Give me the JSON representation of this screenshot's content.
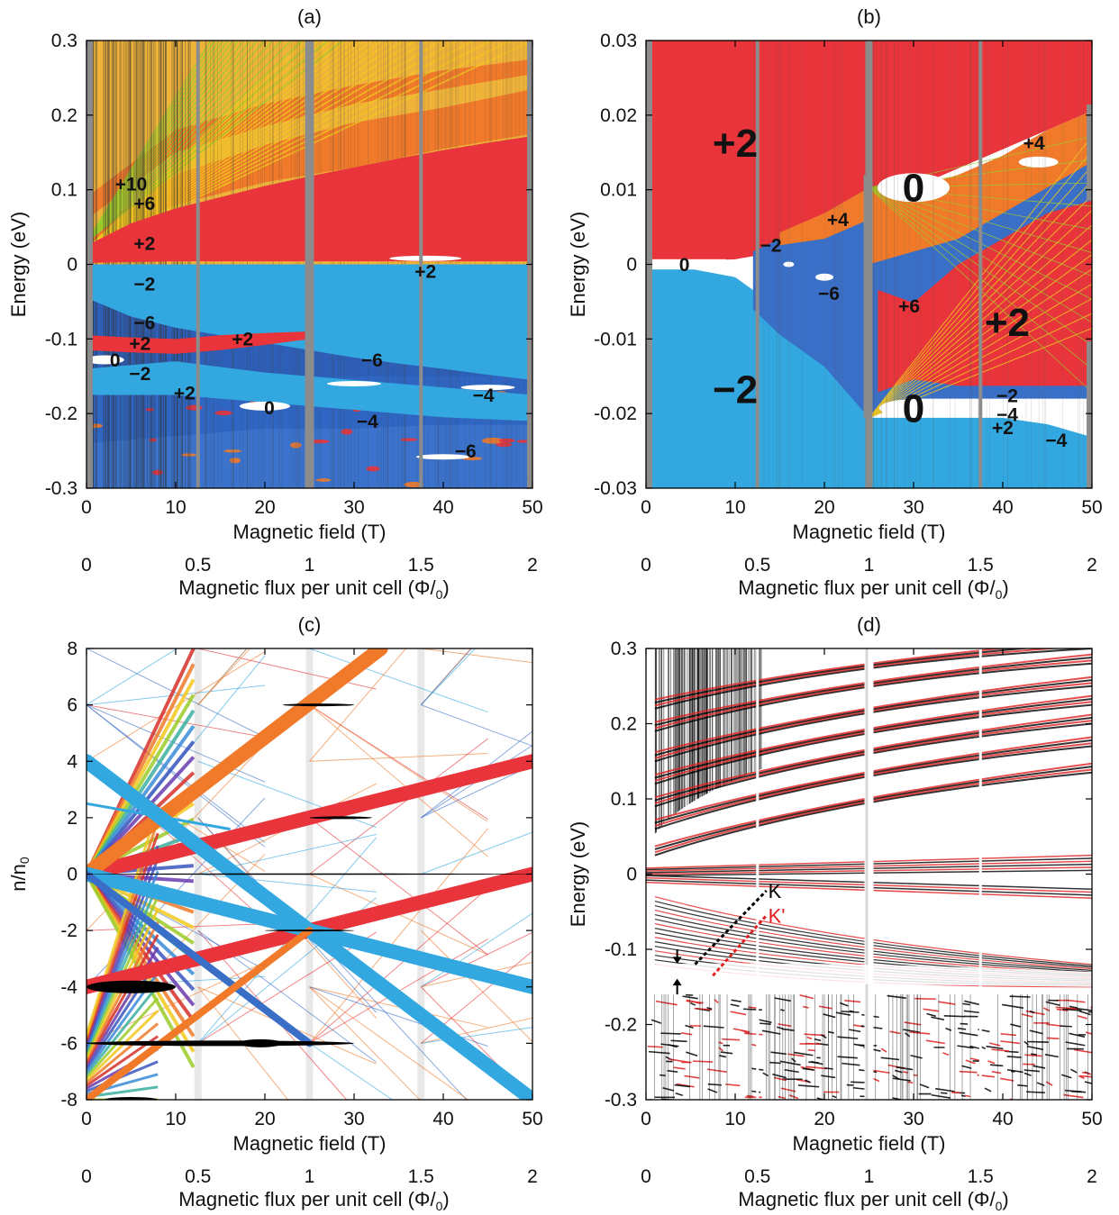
{
  "figure": {
    "colors": {
      "plus2": "#e8343a",
      "minus2": "#33a8e0",
      "orange": "#f07a2a",
      "yellow": "#f2c81f",
      "green": "#9ccc2a",
      "blue_dark": "#3a6fc8",
      "gap_gray": "#8c8c8c",
      "K": "#000000",
      "Kprime": "#e02020"
    }
  },
  "chart_data": [
    {
      "panel": "(a)",
      "type": "area",
      "title": "(a)",
      "xlabel": "Magnetic field (T)",
      "ylabel": "Energy (eV)",
      "xlim": [
        0,
        50
      ],
      "ylim": [
        -0.3,
        0.3
      ],
      "xticks": [
        "0",
        "10",
        "20",
        "30",
        "40",
        "50"
      ],
      "yticks": [
        "-0.3",
        "-0.2",
        "-0.1",
        "0",
        "0.1",
        "0.2",
        "0.3"
      ],
      "x2label": "Magnetic flux per unit cell (Φ/Φ0)",
      "x2ticks": [
        "0",
        "0.5",
        "1",
        "1.5",
        "2"
      ],
      "bands": [
        {
          "name": "+2",
          "color": "plus2",
          "x": [
            0,
            5,
            10,
            15,
            20,
            25,
            30,
            35,
            40,
            45,
            50
          ],
          "lower": [
            0.002,
            0.003,
            0.004,
            0.004,
            0.004,
            0.004,
            0.004,
            0.004,
            0.004,
            0.004,
            0.004
          ],
          "upper": [
            0.025,
            0.055,
            0.075,
            0.09,
            0.105,
            0.118,
            0.13,
            0.142,
            0.153,
            0.163,
            0.172
          ]
        },
        {
          "name": "-2",
          "color": "minus2",
          "x": [
            0,
            5,
            10,
            15,
            20,
            25,
            30,
            35,
            40,
            45,
            50
          ],
          "lower": [
            -0.045,
            -0.07,
            -0.085,
            -0.095,
            -0.105,
            -0.115,
            -0.125,
            -0.133,
            -0.14,
            -0.148,
            -0.155
          ],
          "upper": [
            0,
            0,
            0,
            0,
            0,
            0,
            0,
            0,
            0,
            0,
            0
          ]
        }
      ],
      "annotations": [
        {
          "text": "+10",
          "x": 5,
          "y": 0.108
        },
        {
          "text": "+6",
          "x": 6.5,
          "y": 0.082
        },
        {
          "text": "+2",
          "x": 6.5,
          "y": 0.028
        },
        {
          "text": "-2",
          "x": 6.5,
          "y": -0.026
        },
        {
          "text": "+2",
          "x": 38,
          "y": -0.009
        },
        {
          "text": "-6",
          "x": 6.5,
          "y": -0.078
        },
        {
          "text": "+2",
          "x": 6,
          "y": -0.106
        },
        {
          "text": "+2",
          "x": 17.5,
          "y": -0.1
        },
        {
          "text": "0",
          "x": 3.2,
          "y": -0.128
        },
        {
          "text": "-2",
          "x": 6,
          "y": -0.146
        },
        {
          "text": "+2",
          "x": 11,
          "y": -0.172
        },
        {
          "text": "-6",
          "x": 32,
          "y": -0.128
        },
        {
          "text": "-4",
          "x": 44.5,
          "y": -0.175
        },
        {
          "text": "0",
          "x": 20.5,
          "y": -0.192
        },
        {
          "text": "-4",
          "x": 31.5,
          "y": -0.21
        },
        {
          "text": "-6",
          "x": 42.5,
          "y": -0.25
        }
      ]
    },
    {
      "panel": "(b)",
      "type": "area",
      "title": "(b)",
      "xlabel": "Magnetic field (T)",
      "ylabel": "Energy (eV)",
      "xlim": [
        0,
        50
      ],
      "ylim": [
        -0.035,
        0.035
      ],
      "xticks": [
        "0",
        "10",
        "20",
        "30",
        "40",
        "50"
      ],
      "yticks": [
        "-0.03",
        "-0.02",
        "-0.01",
        "0",
        "0.01",
        "0.02",
        "0.03"
      ],
      "x2label": "Magnetic flux per unit cell (Φ/Φ0)",
      "x2ticks": [
        "0",
        "0.5",
        "1",
        "1.5",
        "2"
      ],
      "annotations": [
        {
          "text": "+2",
          "x": 10,
          "y": 0.019,
          "size": "large"
        },
        {
          "text": "0",
          "x": 30,
          "y": 0.012,
          "size": "large"
        },
        {
          "text": "+4",
          "x": 21.5,
          "y": 0.007
        },
        {
          "text": "+4",
          "x": 43.5,
          "y": 0.019
        },
        {
          "text": "0",
          "x": 4.3,
          "y": 0.0
        },
        {
          "text": "-2",
          "x": 14,
          "y": 0.003
        },
        {
          "text": "-6",
          "x": 20.5,
          "y": -0.0045
        },
        {
          "text": "+6",
          "x": 29.5,
          "y": -0.0065
        },
        {
          "text": "+2",
          "x": 40.5,
          "y": -0.009,
          "size": "large"
        },
        {
          "text": "-2",
          "x": 10,
          "y": -0.0195,
          "size": "large"
        },
        {
          "text": "0",
          "x": 30,
          "y": -0.0225,
          "size": "large"
        },
        {
          "text": "-2",
          "x": 40.5,
          "y": -0.0205
        },
        {
          "text": "-4",
          "x": 40.5,
          "y": -0.0235
        },
        {
          "text": "+2",
          "x": 40,
          "y": -0.0255
        },
        {
          "text": "-4",
          "x": 46,
          "y": -0.0275
        }
      ]
    },
    {
      "panel": "(c)",
      "type": "scatter",
      "title": "(c)",
      "xlabel": "Magnetic field (T)",
      "ylabel": "n/n0",
      "xlim": [
        0,
        50
      ],
      "ylim": [
        -8,
        8
      ],
      "xticks": [
        "0",
        "10",
        "20",
        "30",
        "40",
        "50"
      ],
      "yticks": [
        "-8",
        "-6",
        "-4",
        "-2",
        "0",
        "2",
        "4",
        "6",
        "8"
      ],
      "x2label": "Magnetic flux per unit cell (Φ/Φ0)",
      "x2ticks": [
        "0",
        "0.5",
        "1",
        "1.5",
        "2"
      ],
      "lines": [
        {
          "slope_label": "+2",
          "color": "plus2",
          "x": [
            0,
            50
          ],
          "y": [
            0,
            4
          ],
          "width": "thick"
        },
        {
          "slope_label": "+2",
          "color": "plus2",
          "x": [
            0,
            50
          ],
          "y": [
            -4,
            0
          ],
          "width": "thick"
        },
        {
          "slope_label": "+6",
          "color": "orange",
          "x": [
            0,
            33
          ],
          "y": [
            0,
            8
          ],
          "width": "thick"
        },
        {
          "slope_label": "-2",
          "color": "minus2",
          "x": [
            0,
            50
          ],
          "y": [
            0,
            -4
          ],
          "width": "thick"
        },
        {
          "slope_label": "-6",
          "color": "minus2",
          "x": [
            0,
            50
          ],
          "y": [
            4,
            -8
          ],
          "width": "thick"
        },
        {
          "slope_label": "-6",
          "color": "blue_dark",
          "x": [
            0,
            25
          ],
          "y": [
            0,
            -6
          ],
          "width": "medium"
        },
        {
          "slope_label": "+6",
          "color": "orange",
          "x": [
            0,
            25
          ],
          "y": [
            -8,
            -2
          ],
          "width": "medium"
        },
        {
          "slope_label": "-2",
          "color": "minus2",
          "x": [
            0,
            16
          ],
          "y": [
            2.5,
            1.6
          ],
          "width": "thin"
        }
      ]
    },
    {
      "panel": "(d)",
      "type": "scatter",
      "title": "(d)",
      "xlabel": "Magnetic field (T)",
      "ylabel": "Energy (eV)",
      "xlim": [
        0,
        50
      ],
      "ylim": [
        -0.3,
        0.3
      ],
      "xticks": [
        "0",
        "10",
        "20",
        "30",
        "40",
        "50"
      ],
      "yticks": [
        "-0.3",
        "-0.2",
        "-0.1",
        "0",
        "0.1",
        "0.2",
        "0.3"
      ],
      "x2label": "Magnetic flux per unit cell (Φ/Φ0)",
      "x2ticks": [
        "0",
        "0.5",
        "1",
        "1.5",
        "2"
      ],
      "series": [
        {
          "name": "K",
          "color": "K"
        },
        {
          "name": "K'",
          "color": "Kprime"
        }
      ],
      "legend": "inset-center"
    }
  ]
}
